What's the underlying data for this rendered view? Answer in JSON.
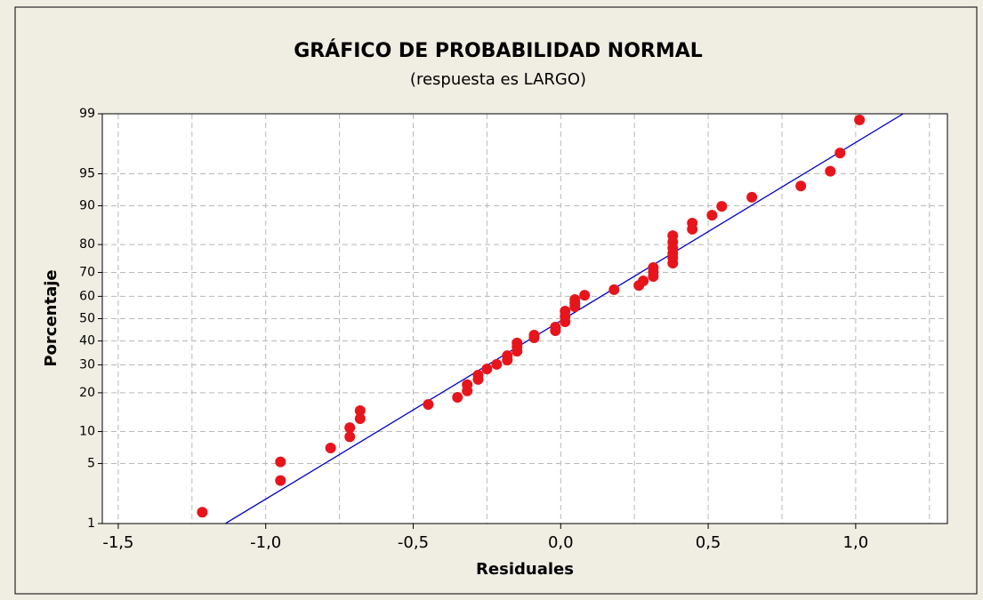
{
  "chart_data": {
    "type": "scatter",
    "title": "GRÁFICO DE PROBABILIDAD NORMAL",
    "subtitle": "(respuesta es LARGO)",
    "xlabel": "Residuales",
    "ylabel": "Porcentaje",
    "yscale": "probit",
    "grid": true,
    "color": "#e8141c",
    "x": [
      -1.215,
      -0.95,
      -0.95,
      -0.78,
      -0.715,
      -0.715,
      -0.68,
      -0.68,
      -0.449,
      -0.35,
      -0.317,
      -0.317,
      -0.28,
      -0.28,
      -0.25,
      -0.217,
      -0.181,
      -0.181,
      -0.148,
      -0.148,
      -0.148,
      -0.09,
      -0.09,
      -0.018,
      -0.018,
      0.015,
      0.015,
      0.015,
      0.048,
      0.048,
      0.048,
      0.081,
      0.181,
      0.265,
      0.28,
      0.314,
      0.314,
      0.314,
      0.38,
      0.38,
      0.38,
      0.38,
      0.38,
      0.38,
      0.446,
      0.446,
      0.513,
      0.546,
      0.648,
      0.814,
      0.914,
      0.947,
      1.013
    ],
    "values": [
      1.4,
      5.2,
      3.3,
      7.1,
      10.8,
      9.0,
      14.8,
      12.8,
      16.5,
      18.6,
      20.6,
      22.7,
      24.5,
      26.1,
      28.4,
      30.2,
      31.9,
      33.7,
      35.6,
      37.5,
      39.1,
      41.4,
      42.6,
      44.6,
      46.2,
      48.6,
      51.0,
      53.4,
      55.4,
      57.0,
      58.6,
      60.5,
      62.9,
      64.7,
      66.6,
      68.4,
      70.2,
      71.9,
      73.6,
      75.5,
      77.1,
      78.9,
      80.8,
      82.7,
      84.5,
      86.1,
      88.0,
      89.9,
      91.6,
      93.4,
      95.3,
      97.0,
      98.8
    ],
    "fit_line": {
      "color": "#0000cc",
      "x": [
        -1.137,
        1.161
      ],
      "y": [
        1,
        99
      ]
    },
    "xlim": [
      -1.554,
      1.311
    ],
    "xticks": [
      {
        "value": -1.5,
        "label": "-1,5"
      },
      {
        "value": -1.0,
        "label": "-1,0"
      },
      {
        "value": -0.5,
        "label": "-0,5"
      },
      {
        "value": 0,
        "label": "0,0"
      },
      {
        "value": 0.5,
        "label": "0,5"
      },
      {
        "value": 1.0,
        "label": "1,0"
      }
    ],
    "xminor": [
      -1.25,
      -0.75,
      -0.25,
      0.25,
      0.75,
      1.25
    ],
    "ylim": [
      1,
      99
    ],
    "yticks": [
      1,
      5,
      10,
      20,
      30,
      40,
      50,
      60,
      70,
      80,
      90,
      95,
      99
    ]
  }
}
